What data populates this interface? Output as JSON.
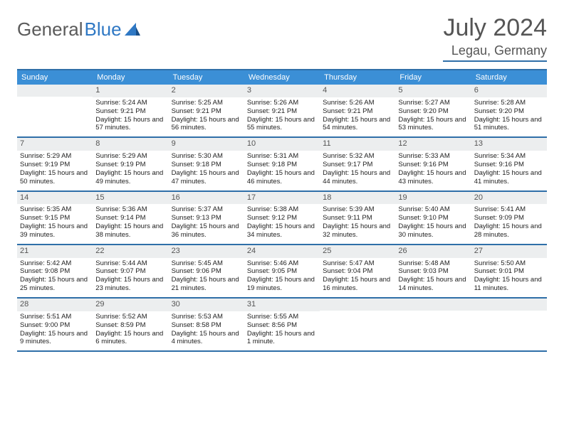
{
  "brand": {
    "name1": "General",
    "name2": "Blue"
  },
  "header": {
    "month": "July 2024",
    "location": "Legau, Germany"
  },
  "day_headers": [
    "Sunday",
    "Monday",
    "Tuesday",
    "Wednesday",
    "Thursday",
    "Friday",
    "Saturday"
  ],
  "colors": {
    "accent": "#3b8fd6",
    "rule": "#2f6fa8",
    "daynum_bg": "#eceeef",
    "text": "#222222",
    "muted": "#555555"
  },
  "weeks": [
    [
      {
        "day": "",
        "sunrise": "",
        "sunset": "",
        "daylight": ""
      },
      {
        "day": "1",
        "sunrise": "Sunrise: 5:24 AM",
        "sunset": "Sunset: 9:21 PM",
        "daylight": "Daylight: 15 hours and 57 minutes."
      },
      {
        "day": "2",
        "sunrise": "Sunrise: 5:25 AM",
        "sunset": "Sunset: 9:21 PM",
        "daylight": "Daylight: 15 hours and 56 minutes."
      },
      {
        "day": "3",
        "sunrise": "Sunrise: 5:26 AM",
        "sunset": "Sunset: 9:21 PM",
        "daylight": "Daylight: 15 hours and 55 minutes."
      },
      {
        "day": "4",
        "sunrise": "Sunrise: 5:26 AM",
        "sunset": "Sunset: 9:21 PM",
        "daylight": "Daylight: 15 hours and 54 minutes."
      },
      {
        "day": "5",
        "sunrise": "Sunrise: 5:27 AM",
        "sunset": "Sunset: 9:20 PM",
        "daylight": "Daylight: 15 hours and 53 minutes."
      },
      {
        "day": "6",
        "sunrise": "Sunrise: 5:28 AM",
        "sunset": "Sunset: 9:20 PM",
        "daylight": "Daylight: 15 hours and 51 minutes."
      }
    ],
    [
      {
        "day": "7",
        "sunrise": "Sunrise: 5:29 AM",
        "sunset": "Sunset: 9:19 PM",
        "daylight": "Daylight: 15 hours and 50 minutes."
      },
      {
        "day": "8",
        "sunrise": "Sunrise: 5:29 AM",
        "sunset": "Sunset: 9:19 PM",
        "daylight": "Daylight: 15 hours and 49 minutes."
      },
      {
        "day": "9",
        "sunrise": "Sunrise: 5:30 AM",
        "sunset": "Sunset: 9:18 PM",
        "daylight": "Daylight: 15 hours and 47 minutes."
      },
      {
        "day": "10",
        "sunrise": "Sunrise: 5:31 AM",
        "sunset": "Sunset: 9:18 PM",
        "daylight": "Daylight: 15 hours and 46 minutes."
      },
      {
        "day": "11",
        "sunrise": "Sunrise: 5:32 AM",
        "sunset": "Sunset: 9:17 PM",
        "daylight": "Daylight: 15 hours and 44 minutes."
      },
      {
        "day": "12",
        "sunrise": "Sunrise: 5:33 AM",
        "sunset": "Sunset: 9:16 PM",
        "daylight": "Daylight: 15 hours and 43 minutes."
      },
      {
        "day": "13",
        "sunrise": "Sunrise: 5:34 AM",
        "sunset": "Sunset: 9:16 PM",
        "daylight": "Daylight: 15 hours and 41 minutes."
      }
    ],
    [
      {
        "day": "14",
        "sunrise": "Sunrise: 5:35 AM",
        "sunset": "Sunset: 9:15 PM",
        "daylight": "Daylight: 15 hours and 39 minutes."
      },
      {
        "day": "15",
        "sunrise": "Sunrise: 5:36 AM",
        "sunset": "Sunset: 9:14 PM",
        "daylight": "Daylight: 15 hours and 38 minutes."
      },
      {
        "day": "16",
        "sunrise": "Sunrise: 5:37 AM",
        "sunset": "Sunset: 9:13 PM",
        "daylight": "Daylight: 15 hours and 36 minutes."
      },
      {
        "day": "17",
        "sunrise": "Sunrise: 5:38 AM",
        "sunset": "Sunset: 9:12 PM",
        "daylight": "Daylight: 15 hours and 34 minutes."
      },
      {
        "day": "18",
        "sunrise": "Sunrise: 5:39 AM",
        "sunset": "Sunset: 9:11 PM",
        "daylight": "Daylight: 15 hours and 32 minutes."
      },
      {
        "day": "19",
        "sunrise": "Sunrise: 5:40 AM",
        "sunset": "Sunset: 9:10 PM",
        "daylight": "Daylight: 15 hours and 30 minutes."
      },
      {
        "day": "20",
        "sunrise": "Sunrise: 5:41 AM",
        "sunset": "Sunset: 9:09 PM",
        "daylight": "Daylight: 15 hours and 28 minutes."
      }
    ],
    [
      {
        "day": "21",
        "sunrise": "Sunrise: 5:42 AM",
        "sunset": "Sunset: 9:08 PM",
        "daylight": "Daylight: 15 hours and 25 minutes."
      },
      {
        "day": "22",
        "sunrise": "Sunrise: 5:44 AM",
        "sunset": "Sunset: 9:07 PM",
        "daylight": "Daylight: 15 hours and 23 minutes."
      },
      {
        "day": "23",
        "sunrise": "Sunrise: 5:45 AM",
        "sunset": "Sunset: 9:06 PM",
        "daylight": "Daylight: 15 hours and 21 minutes."
      },
      {
        "day": "24",
        "sunrise": "Sunrise: 5:46 AM",
        "sunset": "Sunset: 9:05 PM",
        "daylight": "Daylight: 15 hours and 19 minutes."
      },
      {
        "day": "25",
        "sunrise": "Sunrise: 5:47 AM",
        "sunset": "Sunset: 9:04 PM",
        "daylight": "Daylight: 15 hours and 16 minutes."
      },
      {
        "day": "26",
        "sunrise": "Sunrise: 5:48 AM",
        "sunset": "Sunset: 9:03 PM",
        "daylight": "Daylight: 15 hours and 14 minutes."
      },
      {
        "day": "27",
        "sunrise": "Sunrise: 5:50 AM",
        "sunset": "Sunset: 9:01 PM",
        "daylight": "Daylight: 15 hours and 11 minutes."
      }
    ],
    [
      {
        "day": "28",
        "sunrise": "Sunrise: 5:51 AM",
        "sunset": "Sunset: 9:00 PM",
        "daylight": "Daylight: 15 hours and 9 minutes."
      },
      {
        "day": "29",
        "sunrise": "Sunrise: 5:52 AM",
        "sunset": "Sunset: 8:59 PM",
        "daylight": "Daylight: 15 hours and 6 minutes."
      },
      {
        "day": "30",
        "sunrise": "Sunrise: 5:53 AM",
        "sunset": "Sunset: 8:58 PM",
        "daylight": "Daylight: 15 hours and 4 minutes."
      },
      {
        "day": "31",
        "sunrise": "Sunrise: 5:55 AM",
        "sunset": "Sunset: 8:56 PM",
        "daylight": "Daylight: 15 hours and 1 minute."
      },
      {
        "day": "",
        "sunrise": "",
        "sunset": "",
        "daylight": ""
      },
      {
        "day": "",
        "sunrise": "",
        "sunset": "",
        "daylight": ""
      },
      {
        "day": "",
        "sunrise": "",
        "sunset": "",
        "daylight": ""
      }
    ]
  ]
}
